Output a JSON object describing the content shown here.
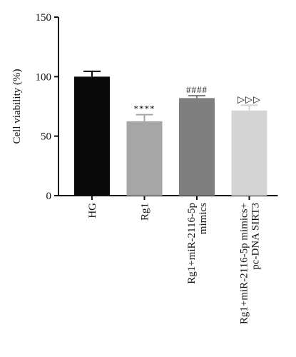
{
  "chart_data": {
    "type": "bar",
    "title": "",
    "xlabel": "",
    "ylabel": "Cell viability (%)",
    "ylim": [
      0,
      150
    ],
    "yticks": [
      0,
      50,
      100,
      150
    ],
    "categories": [
      [
        "HG"
      ],
      [
        "Rg1"
      ],
      [
        "Rg1+miR-2116-5p",
        "mimics"
      ],
      [
        "Rg1+miR-2116-5p mimics+",
        "pc-DNA SIRT3"
      ]
    ],
    "values": [
      100,
      62.5,
      82,
      71.5
    ],
    "errors": [
      4.5,
      5.5,
      2,
      4.5
    ],
    "significance": [
      "",
      "****",
      "####",
      "▷▷▷"
    ],
    "bar_colors": [
      "#0a0a0a",
      "#a6a6a6",
      "#7f7f7f",
      "#d4d4d4"
    ],
    "grid": false,
    "legend": "none"
  }
}
